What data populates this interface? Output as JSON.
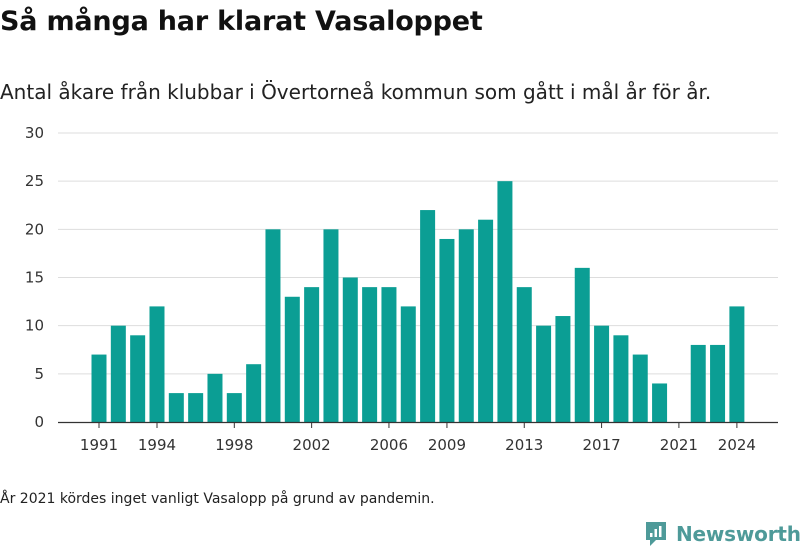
{
  "title": "Så många har klarat Vasaloppet",
  "subtitle": "Antal åkare från klubbar i Övertorneå kommun som gått i mål år för år.",
  "footnote": "År 2021 kördes inget vanligt Vasalopp på grund av pandemin.",
  "brand": {
    "name": "Newsworthy",
    "icon": "newsworthy-logo-icon",
    "color": "#4e9a99"
  },
  "chart_data": {
    "type": "bar",
    "title": "",
    "xlabel": "",
    "ylabel": "",
    "ylim": [
      0,
      30
    ],
    "yticks": [
      0,
      5,
      10,
      15,
      20,
      25,
      30
    ],
    "xtick_labels": [
      "1991",
      "1994",
      "1998",
      "2002",
      "2006",
      "2009",
      "2013",
      "2017",
      "2021",
      "2024"
    ],
    "grid": true,
    "bar_color": "#0b9e94",
    "categories": [
      1991,
      1992,
      1993,
      1994,
      1995,
      1996,
      1997,
      1998,
      1999,
      2000,
      2001,
      2002,
      2003,
      2004,
      2005,
      2006,
      2007,
      2008,
      2009,
      2010,
      2011,
      2012,
      2013,
      2014,
      2015,
      2016,
      2017,
      2018,
      2019,
      2020,
      2021,
      2022,
      2023,
      2024
    ],
    "values": [
      7,
      10,
      9,
      12,
      3,
      3,
      5,
      3,
      6,
      20,
      13,
      14,
      20,
      15,
      14,
      14,
      12,
      22,
      19,
      20,
      21,
      25,
      14,
      10,
      11,
      16,
      10,
      9,
      7,
      4,
      0,
      8,
      8,
      12
    ]
  }
}
